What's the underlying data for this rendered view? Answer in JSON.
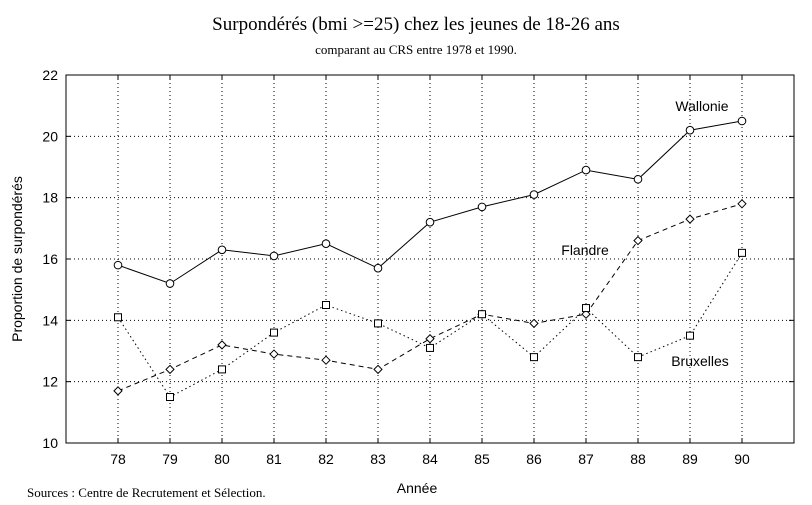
{
  "chart_data": {
    "type": "line",
    "title": "Surpondérés  (bmi >=25) chez les jeunes de 18-26 ans",
    "subtitle": "comparant au CRS entre 1978 et 1990.",
    "xlabel": "Année",
    "ylabel": "Proportion de surpondérés",
    "source": "Sources : Centre de Recrutement et Sélection.",
    "x": [
      "78",
      "79",
      "80",
      "81",
      "82",
      "83",
      "84",
      "85",
      "86",
      "87",
      "88",
      "89",
      "90"
    ],
    "xlim": [
      "77",
      "91"
    ],
    "ylim": [
      10,
      22
    ],
    "yticks": [
      "10",
      "12",
      "14",
      "16",
      "18",
      "20",
      "22"
    ],
    "grid": true,
    "series": [
      {
        "name": "Wallonie",
        "marker": "circle",
        "line_style": "solid",
        "values": [
          15.8,
          15.2,
          16.3,
          16.1,
          16.5,
          15.7,
          17.2,
          17.7,
          18.1,
          18.9,
          18.6,
          20.2,
          20.5
        ]
      },
      {
        "name": "Flandre",
        "marker": "diamond",
        "line_style": "dashed",
        "values": [
          11.7,
          12.4,
          13.2,
          12.9,
          12.7,
          12.4,
          13.4,
          14.2,
          13.9,
          14.2,
          16.6,
          17.3,
          17.8
        ]
      },
      {
        "name": "Bruxelles",
        "marker": "square",
        "line_style": "dotted",
        "values": [
          14.1,
          11.5,
          12.4,
          13.6,
          14.5,
          13.9,
          13.1,
          14.2,
          12.8,
          14.4,
          12.8,
          13.5,
          16.2
        ]
      }
    ],
    "colors": {
      "line": "#000000",
      "grid": "#000000",
      "background": "#ffffff"
    }
  }
}
